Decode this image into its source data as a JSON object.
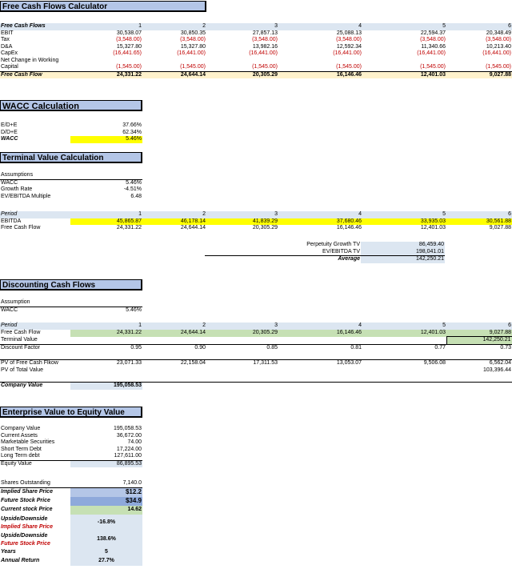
{
  "fcf": {
    "title": "Free Cash Flows Calculator",
    "header": {
      "label": "Free Cash Flows",
      "periods": [
        "1",
        "2",
        "3",
        "4",
        "5",
        "6"
      ]
    },
    "rows": [
      {
        "label": "EBIT",
        "values": [
          "30,538.07",
          "30,850.35",
          "27,857.13",
          "25,088.13",
          "22,594.37",
          "20,348.49"
        ],
        "neg": false
      },
      {
        "label": "Tax",
        "values": [
          "(3,548.00)",
          "(3,548.00)",
          "(3,548.00)",
          "(3,548.00)",
          "(3,548.00)",
          "(3,548.00)"
        ],
        "neg": true
      },
      {
        "label": "D&A",
        "values": [
          "15,327.80",
          "15,327.80",
          "13,982.16",
          "12,592.34",
          "11,340.66",
          "10,213.40"
        ],
        "neg": false
      },
      {
        "label": "CapEx",
        "values": [
          "(16,441.65)",
          "(16,441.00)",
          "(16,441.00)",
          "(16,441.00)",
          "(16,441.00)",
          "(16,441.00)"
        ],
        "neg": true
      }
    ],
    "nwc_label_1": "Net Change in Working",
    "nwc_label_2": "Capital",
    "nwc_values": [
      "(1,545.00)",
      "(1,545.00)",
      "(1,545.00)",
      "(1,545.00)",
      "(1,545.00)",
      "(1,545.00)"
    ],
    "total": {
      "label": "Free Cash Flow",
      "values": [
        "24,331.22",
        "24,644.14",
        "20,305.29",
        "16,146.46",
        "12,401.03",
        "9,027.88"
      ]
    }
  },
  "wacc": {
    "title": "WACC Calculation",
    "rows": [
      {
        "label": "E/D+E",
        "value": "37.66%"
      },
      {
        "label": "D/D+E",
        "value": "62.34%"
      }
    ],
    "total": {
      "label": "WACC",
      "value": "5.46%"
    }
  },
  "tv": {
    "title": "Terminal Value Calculation",
    "assumptions_label": "Assumptions",
    "assumptions": [
      {
        "label": "WACC",
        "value": "5.46%"
      },
      {
        "label": "Growth Rate",
        "value": "-4.51%"
      },
      {
        "label": "EV/EBITDA Multiple",
        "value": "6.48"
      }
    ],
    "period_label": "Period",
    "periods": [
      "1",
      "2",
      "3",
      "4",
      "5",
      "6"
    ],
    "ebitda": {
      "label": "EBITDA",
      "values": [
        "45,865.87",
        "46,178.14",
        "41,839.29",
        "37,680.46",
        "33,935.03",
        "30,561.88"
      ]
    },
    "fcf": {
      "label": "Free Cash Flow",
      "values": [
        "24,331.22",
        "24,644.14",
        "20,305.29",
        "16,146.46",
        "12,401.03",
        "9,027.88"
      ]
    },
    "summary": [
      {
        "label": "Perpetuity Growth TV",
        "value": "86,459.40"
      },
      {
        "label": "EV/EBITDA TV",
        "value": "198,041.01"
      },
      {
        "label": "Average",
        "value": "142,250.21"
      }
    ]
  },
  "dcf": {
    "title": "Discounting Cash Flows",
    "assumption_label": "Assumption",
    "wacc": {
      "label": "WACC",
      "value": "5.46%"
    },
    "period_label": "Period",
    "periods": [
      "1",
      "2",
      "3",
      "4",
      "5",
      "6"
    ],
    "fcf": {
      "label": "Free Cash Flow",
      "values": [
        "24,331.22",
        "24,644.14",
        "20,305.29",
        "16,146.46",
        "12,401.03",
        "9,027.88"
      ]
    },
    "terminal": {
      "label": "Terminal Value",
      "value": "142,250.21"
    },
    "discount": {
      "label": "Discount Factor",
      "values": [
        "0.95",
        "0.90",
        "0.85",
        "0.81",
        "0.77",
        "0.73"
      ]
    },
    "pv_fcf": {
      "label": "PV of Free Cash Flkow",
      "values": [
        "23,071.33",
        "22,158.04",
        "17,311.53",
        "13,053.07",
        "9,506.08",
        "6,562.04"
      ]
    },
    "pv_total": {
      "label": "PV of Total Value",
      "value": "103,396.44"
    },
    "company": {
      "label": "Company Value",
      "value": "195,058.53"
    }
  },
  "ev": {
    "title": "Enterprise Value to Equity Value",
    "rows": [
      {
        "label": "Company Value",
        "value": "195,058.53"
      },
      {
        "label": "Current Assets",
        "value": "36,672.00"
      },
      {
        "label": "Marketable Securities",
        "value": "74.00"
      },
      {
        "label": "Short Term Debt",
        "value": "17,224.00"
      },
      {
        "label": "Long Term debt",
        "value": "127,611.00"
      }
    ],
    "equity": {
      "label": "Equity Value",
      "value": "86,895.53"
    },
    "shares": {
      "label": "Shares Outstanding",
      "value": "7,140.0"
    },
    "implied": {
      "label": "Implied Share Price",
      "value": "$12.2"
    },
    "future": {
      "label": "Future Stock Price",
      "value": "$34.9"
    },
    "current": {
      "label": "Current stock Price",
      "value": "14.62"
    },
    "updown1": {
      "label_1": "Upside/Downside",
      "label_2": "Implied Share Price",
      "value": "-16.8%"
    },
    "updown2": {
      "label_1": "Upside/Downside",
      "label_2": "Future Stock Price",
      "value": "138.6%"
    },
    "years": {
      "label": "Years",
      "value": "5"
    },
    "annual": {
      "label": "Annual Return",
      "value": "27.7%"
    }
  }
}
